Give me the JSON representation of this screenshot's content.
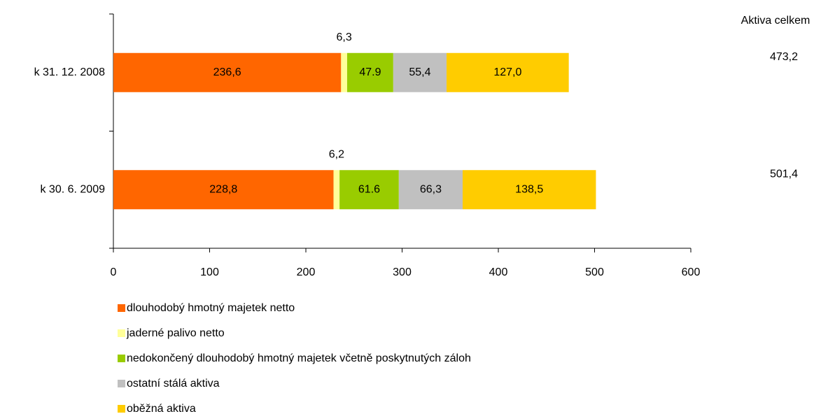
{
  "chart_data": {
    "type": "stacked-barh",
    "categories": [
      "k 31. 12. 2008",
      "k 30. 6. 2009"
    ],
    "series": [
      {
        "name": "dlouhodobý hmotný majetek netto",
        "color": "#ff6600",
        "values": [
          236.6,
          228.8
        ],
        "value_labels": [
          "236,6",
          "228,8"
        ]
      },
      {
        "name": "jaderné palivo netto",
        "color": "#ffff99",
        "values": [
          6.3,
          6.2
        ],
        "value_labels": [
          "6,3",
          "6,2"
        ]
      },
      {
        "name": "nedokončený dlouhodobý hmotný majetek včetně poskytnutých záloh",
        "color": "#99cc00",
        "values": [
          47.9,
          61.6
        ],
        "value_labels": [
          "47.9",
          "61.6"
        ]
      },
      {
        "name": "ostatní stálá aktiva",
        "color": "#c0c0c0",
        "values": [
          55.4,
          66.3
        ],
        "value_labels": [
          "55,4",
          "66,3"
        ]
      },
      {
        "name": "oběžná aktiva",
        "color": "#ffcc00",
        "values": [
          127.0,
          138.5
        ],
        "value_labels": [
          "127,0",
          "138,5"
        ]
      }
    ],
    "totals": {
      "title": "Aktiva celkem",
      "values": [
        473.2,
        501.4
      ],
      "value_labels": [
        "473,2",
        "501,4"
      ]
    },
    "xlim": [
      0,
      600
    ],
    "xticks": [
      0,
      100,
      200,
      300,
      400,
      500,
      600
    ],
    "legend": "bottom"
  }
}
